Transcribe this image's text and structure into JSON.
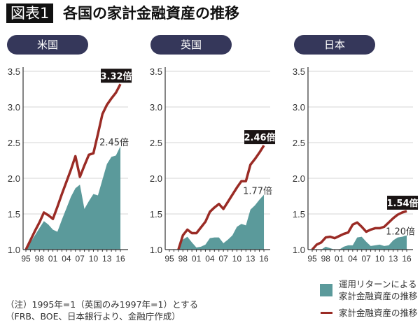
{
  "header": {
    "badge": "図表1",
    "title": "各国の家計金融資産の推移"
  },
  "colors": {
    "teal": "#5b9a9b",
    "red": "#9a2b25",
    "pill": "#35375a",
    "callout": "#1a1414"
  },
  "notes": [
    "（注）1995年=1（英国のみ1997年=1）とする",
    "（FRB、BOE、日本銀行より、金融庁作成）"
  ],
  "legend": {
    "teal_label": [
      "運用リターンによる",
      "家計金融資産の推移"
    ],
    "red_label": "家計金融資産の推移"
  },
  "chart_data": [
    {
      "type": "area+line",
      "title": "米国",
      "ylim": [
        1.0,
        3.5
      ],
      "yticks": [
        "1.0",
        "1.5",
        "2.0",
        "2.5",
        "3.0",
        "3.5"
      ],
      "xticks": [
        "95",
        "98",
        "01",
        "04",
        "07",
        "10",
        "13",
        "16"
      ],
      "years": [
        1995,
        1996,
        1997,
        1998,
        1999,
        2000,
        2001,
        2002,
        2003,
        2004,
        2005,
        2006,
        2007,
        2008,
        2009,
        2010,
        2011,
        2012,
        2013,
        2014,
        2015,
        2016
      ],
      "series": [
        {
          "name": "運用リターンによる家計金融資産の推移",
          "kind": "area",
          "values": [
            1.0,
            1.1,
            1.2,
            1.3,
            1.4,
            1.35,
            1.28,
            1.25,
            1.42,
            1.58,
            1.74,
            1.86,
            1.91,
            1.57,
            1.68,
            1.78,
            1.76,
            1.98,
            2.2,
            2.3,
            2.32,
            2.45
          ],
          "end_label": "2.45倍"
        },
        {
          "name": "家計金融資産の推移",
          "kind": "line",
          "values": [
            1.0,
            1.13,
            1.26,
            1.38,
            1.52,
            1.48,
            1.43,
            1.6,
            1.78,
            1.95,
            2.12,
            2.31,
            2.02,
            2.18,
            2.33,
            2.35,
            2.62,
            2.9,
            3.03,
            3.12,
            3.2,
            3.32
          ],
          "end_label": "3.32倍"
        }
      ]
    },
    {
      "type": "area+line",
      "title": "英国",
      "ylim": [
        1.0,
        3.5
      ],
      "yticks": [
        "1.0",
        "1.5",
        "2.0",
        "2.5",
        "3.0",
        "3.5"
      ],
      "xticks": [
        "95",
        "98",
        "01",
        "04",
        "07",
        "10",
        "13",
        "16"
      ],
      "years": [
        1997,
        1998,
        1999,
        2000,
        2001,
        2002,
        2003,
        2004,
        2005,
        2006,
        2007,
        2008,
        2009,
        2010,
        2011,
        2012,
        2013,
        2014,
        2015,
        2016
      ],
      "series": [
        {
          "name": "運用リターンによる家計金融資産の推移",
          "kind": "area",
          "values": [
            1.0,
            1.14,
            1.18,
            1.1,
            1.03,
            1.04,
            1.07,
            1.16,
            1.17,
            1.17,
            1.09,
            1.14,
            1.2,
            1.32,
            1.36,
            1.34,
            1.56,
            1.62,
            1.7,
            1.77
          ],
          "end_label": "1.77倍"
        },
        {
          "name": "家計金融資産の推移",
          "kind": "line",
          "values": [
            1.0,
            1.2,
            1.28,
            1.23,
            1.23,
            1.31,
            1.39,
            1.53,
            1.59,
            1.64,
            1.57,
            1.67,
            1.77,
            1.87,
            1.96,
            1.96,
            2.19,
            2.27,
            2.36,
            2.46
          ],
          "end_label": "2.46倍"
        }
      ]
    },
    {
      "type": "area+line",
      "title": "日本",
      "ylim": [
        1.0,
        3.5
      ],
      "yticks": [
        "1.0",
        "1.5",
        "2.0",
        "2.5",
        "3.0",
        "3.5"
      ],
      "xticks": [
        "95",
        "98",
        "01",
        "04",
        "07",
        "10",
        "13",
        "16"
      ],
      "years": [
        1995,
        1996,
        1997,
        1998,
        1999,
        2000,
        2001,
        2002,
        2003,
        2004,
        2005,
        2006,
        2007,
        2008,
        2009,
        2010,
        2011,
        2012,
        2013,
        2014,
        2015,
        2016
      ],
      "series": [
        {
          "name": "運用リターンによる家計金融資産の推移",
          "kind": "area",
          "values": [
            1.0,
            1.0,
            1.0,
            1.04,
            1.02,
            1.0,
            1.0,
            1.04,
            1.06,
            1.06,
            1.17,
            1.18,
            1.11,
            1.05,
            1.06,
            1.07,
            1.05,
            1.06,
            1.13,
            1.17,
            1.18,
            1.2
          ],
          "end_label": "1.20倍"
        },
        {
          "name": "家計金融資産の推移",
          "kind": "line",
          "values": [
            1.0,
            1.07,
            1.1,
            1.17,
            1.18,
            1.16,
            1.19,
            1.22,
            1.24,
            1.35,
            1.38,
            1.32,
            1.25,
            1.28,
            1.3,
            1.3,
            1.32,
            1.38,
            1.44,
            1.49,
            1.52,
            1.54
          ],
          "end_label": "1.54倍"
        }
      ]
    }
  ]
}
